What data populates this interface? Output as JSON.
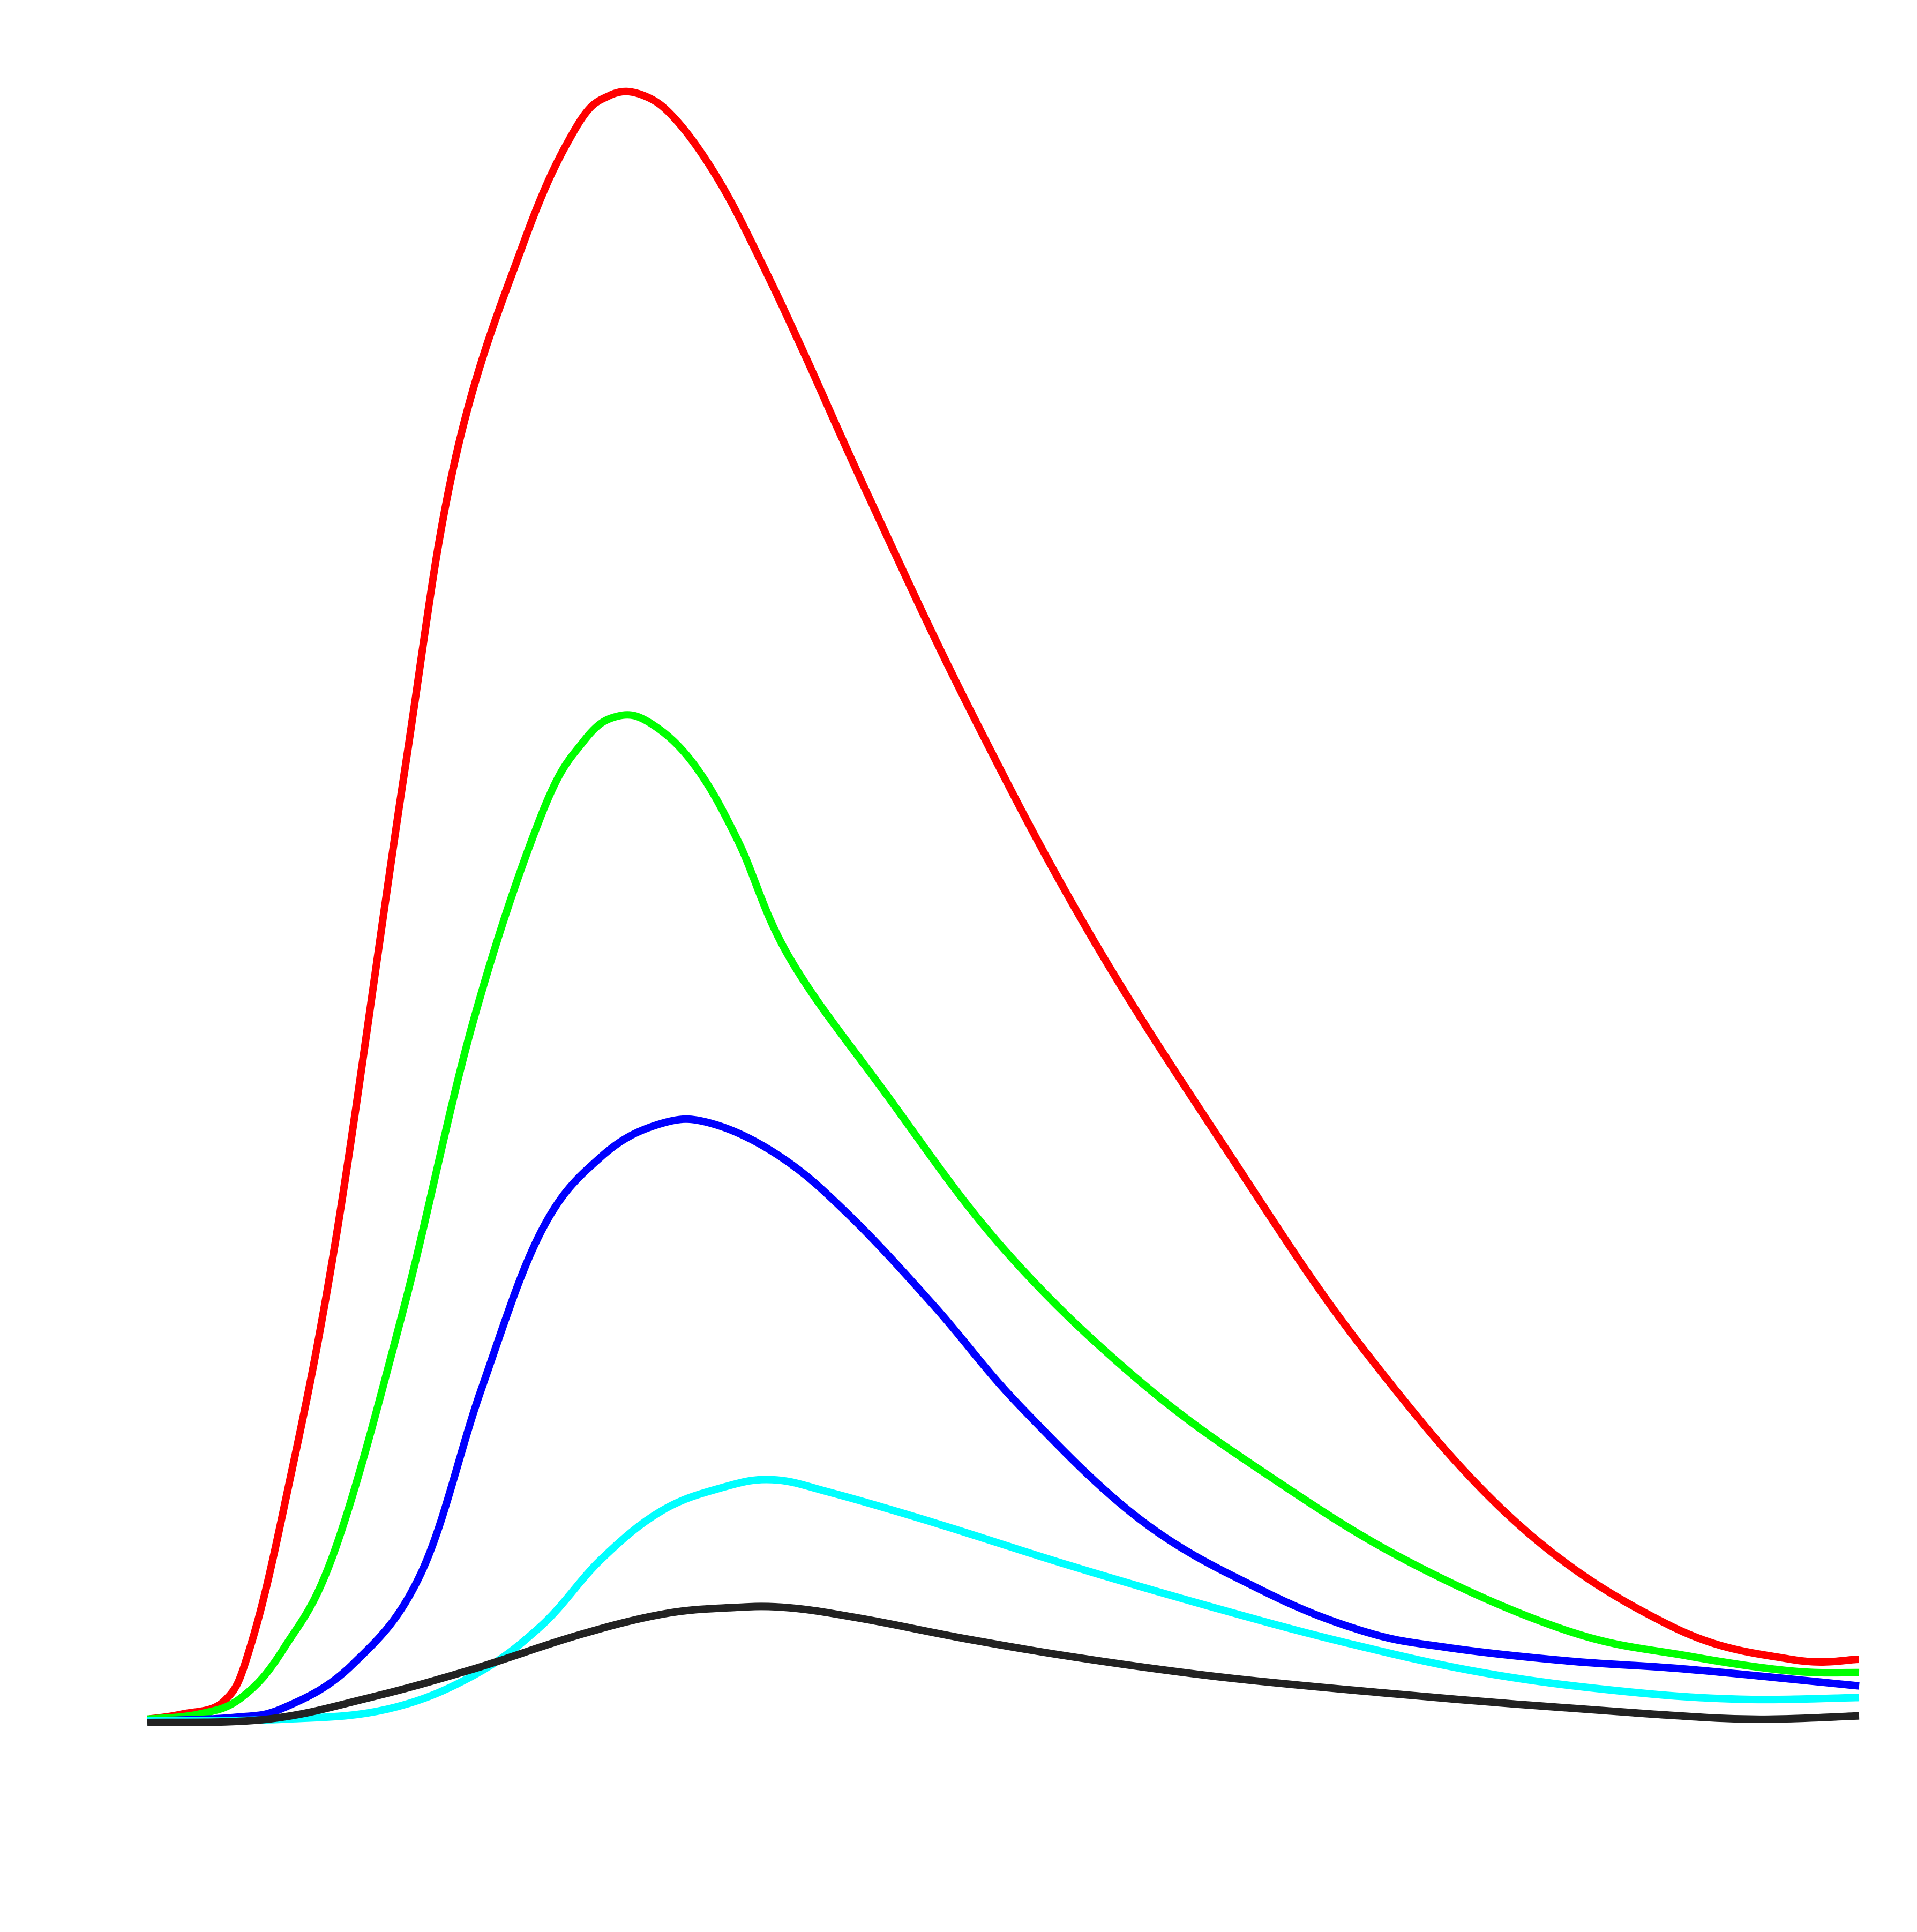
{
  "chart_data": {
    "type": "line",
    "title": "",
    "xlabel": "",
    "ylabel": "",
    "grid": false,
    "legend": "none",
    "xlim": [
      0,
      10
    ],
    "ylim": [
      0,
      10
    ],
    "series": [
      {
        "color": "#ff0000",
        "x": [
          0,
          0.2,
          0.45,
          0.6,
          0.8,
          1.1,
          1.5,
          1.8,
          2.2,
          2.5,
          2.7,
          2.9,
          3.1,
          3.35,
          3.6,
          3.85,
          4.2,
          4.8,
          5.5,
          6.3,
          7.1,
          8.0,
          8.9,
          9.6,
          10.0
        ],
        "y": [
          0.02,
          0.05,
          0.13,
          0.45,
          1.3,
          2.9,
          5.7,
          7.6,
          8.9,
          9.58,
          9.78,
          9.78,
          9.62,
          9.25,
          8.75,
          8.2,
          7.4,
          6.1,
          4.75,
          3.45,
          2.25,
          1.2,
          0.58,
          0.38,
          0.38
        ]
      },
      {
        "color": "#00ff00",
        "x": [
          0,
          0.3,
          0.55,
          0.8,
          1.1,
          1.5,
          1.9,
          2.3,
          2.55,
          2.75,
          2.95,
          3.2,
          3.45,
          3.75,
          4.3,
          5.0,
          5.8,
          6.6,
          7.4,
          8.3,
          9.0,
          9.6,
          10.0
        ],
        "y": [
          0.02,
          0.05,
          0.15,
          0.45,
          1.05,
          2.5,
          4.2,
          5.45,
          5.9,
          6.05,
          6.0,
          5.75,
          5.3,
          4.6,
          3.8,
          2.85,
          2.05,
          1.45,
          0.95,
          0.55,
          0.4,
          0.31,
          0.3
        ]
      },
      {
        "color": "#0000ff",
        "x": [
          0,
          0.5,
          0.8,
          1.2,
          1.6,
          1.95,
          2.3,
          2.65,
          3.0,
          3.3,
          3.7,
          4.1,
          4.6,
          5.1,
          5.8,
          6.5,
          7.1,
          7.6,
          8.3,
          9.0,
          10.0
        ],
        "y": [
          0.01,
          0.03,
          0.09,
          0.35,
          0.9,
          2.0,
          2.95,
          3.4,
          3.6,
          3.6,
          3.4,
          3.05,
          2.5,
          1.9,
          1.22,
          0.8,
          0.55,
          0.45,
          0.37,
          0.32,
          0.22
        ]
      },
      {
        "color": "#00ffff",
        "x": [
          0,
          0.8,
          1.4,
          1.9,
          2.3,
          2.65,
          3.0,
          3.35,
          3.65,
          4.0,
          4.6,
          5.4,
          6.2,
          7.0,
          7.8,
          8.6,
          9.3,
          10.0
        ],
        "y": [
          0.01,
          0.02,
          0.08,
          0.28,
          0.58,
          0.98,
          1.27,
          1.41,
          1.46,
          1.38,
          1.2,
          0.94,
          0.7,
          0.48,
          0.3,
          0.19,
          0.14,
          0.15
        ]
      },
      {
        "color": "#222222",
        "x": [
          0,
          0.7,
          1.3,
          1.9,
          2.5,
          3.0,
          3.4,
          3.75,
          4.2,
          4.8,
          5.5,
          6.3,
          7.2,
          8.0,
          8.8,
          9.4,
          10.0
        ],
        "y": [
          0.0,
          0.02,
          0.15,
          0.32,
          0.52,
          0.65,
          0.69,
          0.69,
          0.62,
          0.5,
          0.38,
          0.27,
          0.18,
          0.11,
          0.05,
          0.02,
          0.04
        ]
      }
    ]
  }
}
